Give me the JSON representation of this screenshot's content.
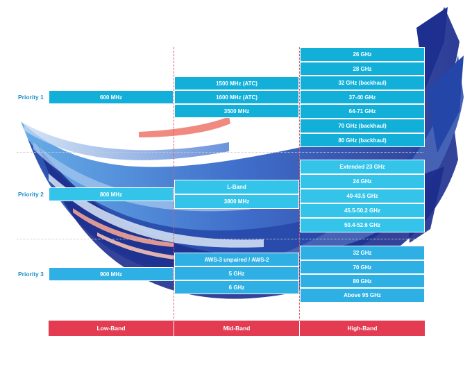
{
  "priorities": [
    "Priority 1",
    "Priority 2",
    "Priority 3"
  ],
  "bands": [
    "Low-Band",
    "Mid-Band",
    "High-Band"
  ],
  "low_band": [
    "600 MHz",
    "800 MHz",
    "900 MHz"
  ],
  "mid_band": {
    "p1": [
      "1500 MHz (ATC)",
      "1600 MHz (ATC)",
      "3500 MHz"
    ],
    "p2": [
      "L-Band",
      "3800 MHz"
    ],
    "p3": [
      "AWS-3 unpaired / AWS-2",
      "5 GHz",
      "6 GHz"
    ]
  },
  "high_band": {
    "p1": [
      "26 GHz",
      "28 GHz",
      "32 GHz (backhaul)",
      "37-40 GHz",
      "64-71 GHz",
      "70 GHz (backhaul)",
      "80 GHz (backhaul)"
    ],
    "p2": [
      "Extended 23 GHz",
      "24 GHz",
      "40-43.5 GHz",
      "45.5-50.2 GHz",
      "50.4-52.6 GHz"
    ],
    "p3": [
      "32 GHz",
      "70 GHz",
      "80 GHz",
      "Above 95 GHz"
    ]
  },
  "colors": {
    "priority_text": "#1c8fc9",
    "band_bar": "#e23b52",
    "cell_priority1": "#12afd9",
    "cell_priority2": "#34c4ea",
    "cell_priority3": "#2eb0e4",
    "swoosh_dark": "#1d2f8f",
    "swoosh_mid": "#2b5fc4"
  }
}
